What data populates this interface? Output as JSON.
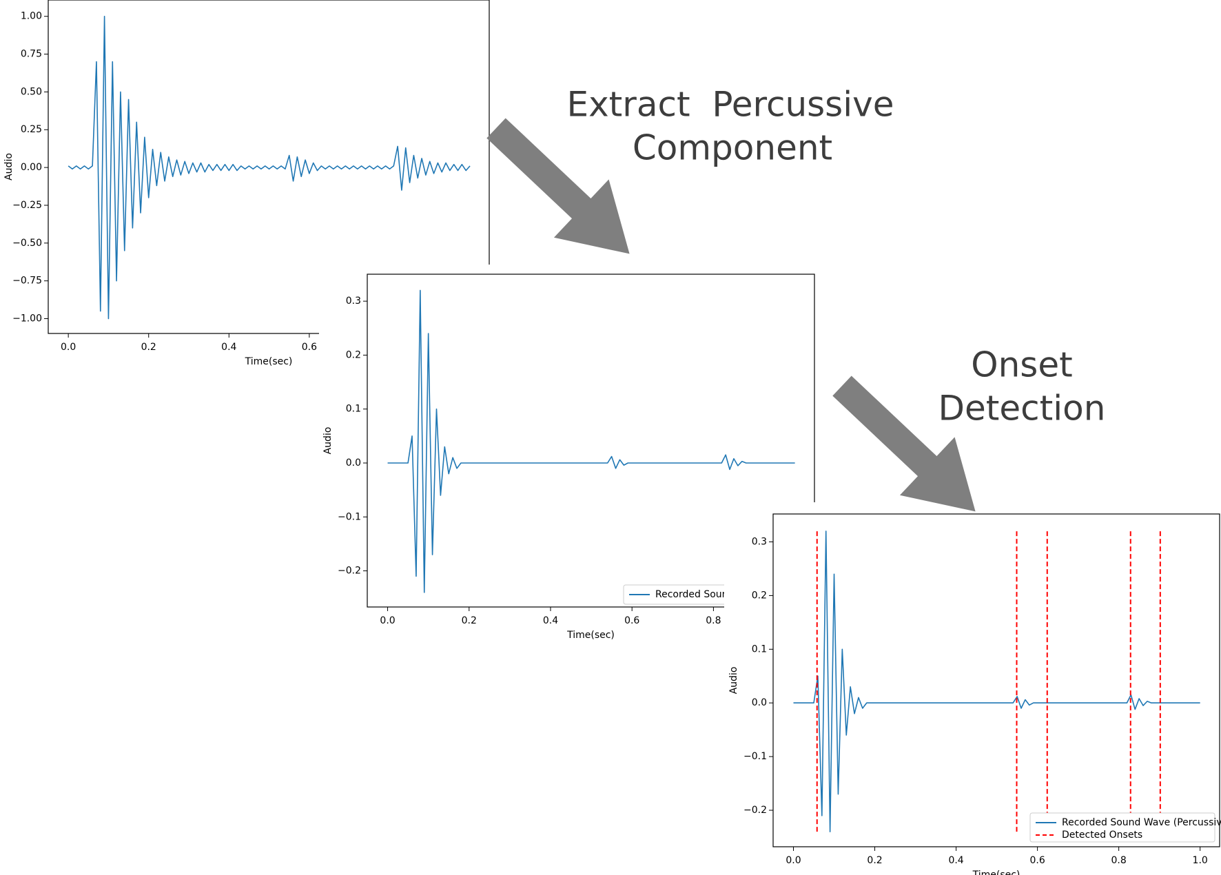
{
  "annotations": [
    "Extract  Percussive",
    "Component",
    "Onset",
    "Detection"
  ],
  "chart_data": [
    {
      "type": "line",
      "xlabel": "Time(sec)",
      "ylabel": "Audio",
      "xlim": [
        -0.05,
        1.048
      ],
      "ylim": [
        -1.098,
        1.108
      ],
      "xticks": [
        {
          "value": 0,
          "label": "0.0"
        },
        {
          "value": 0.2,
          "label": "0.2"
        },
        {
          "value": 0.4,
          "label": "0.4"
        },
        {
          "value": 0.6,
          "label": "0.6"
        }
      ],
      "yticks": [
        {
          "value": 1,
          "label": "1.00"
        },
        {
          "value": 0.75,
          "label": "0.75"
        },
        {
          "value": 0.5,
          "label": "0.50"
        },
        {
          "value": 0.25,
          "label": "0.25"
        },
        {
          "value": 0,
          "label": "0.00"
        },
        {
          "value": -0.25,
          "label": "−0.25"
        },
        {
          "value": -0.5,
          "label": "−0.50"
        },
        {
          "value": -0.75,
          "label": "−0.75"
        },
        {
          "value": -1,
          "label": "−1.00"
        }
      ],
      "x": [
        0,
        0.01,
        0.02,
        0.03,
        0.04,
        0.05,
        0.06,
        0.07,
        0.08,
        0.09,
        0.1,
        0.11,
        0.12,
        0.13,
        0.14,
        0.15,
        0.16,
        0.17,
        0.18,
        0.19,
        0.2,
        0.21,
        0.22,
        0.23,
        0.24,
        0.25,
        0.26,
        0.27,
        0.28,
        0.29,
        0.3,
        0.31,
        0.32,
        0.33,
        0.34,
        0.35,
        0.36,
        0.37,
        0.38,
        0.39,
        0.4,
        0.41,
        0.42,
        0.43,
        0.44,
        0.45,
        0.46,
        0.47,
        0.48,
        0.49,
        0.5,
        0.51,
        0.52,
        0.53,
        0.54,
        0.55,
        0.56,
        0.57,
        0.58,
        0.59,
        0.6,
        0.61,
        0.62,
        0.63,
        0.64,
        0.65,
        0.66,
        0.67,
        0.68,
        0.69,
        0.7,
        0.71,
        0.72,
        0.73,
        0.74,
        0.75,
        0.76,
        0.77,
        0.78,
        0.79,
        0.8,
        0.81,
        0.82,
        0.83,
        0.84,
        0.85,
        0.86,
        0.87,
        0.88,
        0.89,
        0.9,
        0.91,
        0.92,
        0.93,
        0.94,
        0.95,
        0.96,
        0.97,
        0.98,
        0.99,
        1
      ],
      "series": [
        {
          "color": "#1f77b4",
          "values": [
            0.01,
            -0.01,
            0.01,
            -0.01,
            0.01,
            -0.01,
            0.01,
            0.7,
            -0.95,
            1.0,
            -1.0,
            0.7,
            -0.75,
            0.5,
            -0.55,
            0.45,
            -0.4,
            0.3,
            -0.3,
            0.2,
            -0.2,
            0.12,
            -0.12,
            0.1,
            -0.09,
            0.07,
            -0.06,
            0.05,
            -0.05,
            0.04,
            -0.04,
            0.03,
            -0.03,
            0.03,
            -0.03,
            0.02,
            -0.02,
            0.02,
            -0.02,
            0.02,
            -0.02,
            0.02,
            -0.02,
            0.01,
            -0.01,
            0.01,
            -0.01,
            0.01,
            -0.01,
            0.01,
            -0.01,
            0.01,
            -0.01,
            0.01,
            -0.01,
            0.08,
            -0.09,
            0.07,
            -0.06,
            0.05,
            -0.04,
            0.03,
            -0.02,
            0.01,
            -0.01,
            0.01,
            -0.01,
            0.01,
            -0.01,
            0.01,
            -0.01,
            0.01,
            -0.01,
            0.01,
            -0.01,
            0.01,
            -0.01,
            0.01,
            -0.01,
            0.01,
            -0.01,
            0.01,
            0.14,
            -0.15,
            0.13,
            -0.1,
            0.08,
            -0.07,
            0.06,
            -0.05,
            0.04,
            -0.04,
            0.03,
            -0.03,
            0.03,
            -0.02,
            0.02,
            -0.02,
            0.02,
            -0.02,
            0.01
          ]
        }
      ]
    },
    {
      "type": "line",
      "xlabel": "Time(sec)",
      "ylabel": "Audio",
      "legend": "lower right",
      "xlim": [
        -0.05,
        1.048
      ],
      "ylim": [
        -0.267,
        0.35
      ],
      "xticks": [
        {
          "value": 0,
          "label": "0.0"
        },
        {
          "value": 0.2,
          "label": "0.2"
        },
        {
          "value": 0.4,
          "label": "0.4"
        },
        {
          "value": 0.6,
          "label": "0.6"
        },
        {
          "value": 0.8,
          "label": "0.8"
        }
      ],
      "yticks": [
        {
          "value": 0.3,
          "label": "0.3"
        },
        {
          "value": 0.2,
          "label": "0.2"
        },
        {
          "value": 0.1,
          "label": "0.1"
        },
        {
          "value": 0,
          "label": "0.0"
        },
        {
          "value": -0.1,
          "label": "−0.1"
        },
        {
          "value": -0.2,
          "label": "−0.2"
        }
      ],
      "x": [
        0,
        0.01,
        0.02,
        0.03,
        0.04,
        0.05,
        0.06,
        0.07,
        0.08,
        0.09,
        0.1,
        0.11,
        0.12,
        0.13,
        0.14,
        0.15,
        0.16,
        0.17,
        0.18,
        0.19,
        0.2,
        0.21,
        0.22,
        0.23,
        0.24,
        0.25,
        0.26,
        0.27,
        0.28,
        0.29,
        0.3,
        0.31,
        0.32,
        0.33,
        0.34,
        0.35,
        0.36,
        0.37,
        0.38,
        0.39,
        0.4,
        0.41,
        0.42,
        0.43,
        0.44,
        0.45,
        0.46,
        0.47,
        0.48,
        0.49,
        0.5,
        0.51,
        0.52,
        0.53,
        0.54,
        0.55,
        0.56,
        0.57,
        0.58,
        0.59,
        0.6,
        0.61,
        0.62,
        0.63,
        0.64,
        0.65,
        0.66,
        0.67,
        0.68,
        0.69,
        0.7,
        0.71,
        0.72,
        0.73,
        0.74,
        0.75,
        0.76,
        0.77,
        0.78,
        0.79,
        0.8,
        0.81,
        0.82,
        0.83,
        0.84,
        0.85,
        0.86,
        0.87,
        0.88,
        0.89,
        0.9,
        0.91,
        0.92,
        0.93,
        0.94,
        0.95,
        0.96,
        0.97,
        0.98,
        0.99,
        1
      ],
      "series": [
        {
          "name": "Recorded Sound",
          "color": "#1f77b4",
          "values": [
            0,
            0,
            0,
            0,
            0,
            0,
            0.05,
            -0.21,
            0.32,
            -0.24,
            0.24,
            -0.17,
            0.1,
            -0.06,
            0.03,
            -0.02,
            0.01,
            -0.01,
            0,
            0,
            0,
            0,
            0,
            0,
            0,
            0,
            0,
            0,
            0,
            0,
            0,
            0,
            0,
            0,
            0,
            0,
            0,
            0,
            0,
            0,
            0,
            0,
            0,
            0,
            0,
            0,
            0,
            0,
            0,
            0,
            0,
            0,
            0,
            0,
            0,
            0.012,
            -0.01,
            0.006,
            -0.004,
            0,
            0,
            0,
            0,
            0,
            0,
            0,
            0,
            0,
            0,
            0,
            0,
            0,
            0,
            0,
            0,
            0,
            0,
            0,
            0,
            0,
            0,
            0,
            0,
            0.015,
            -0.012,
            0.008,
            -0.005,
            0.003,
            0,
            0,
            0,
            0,
            0,
            0,
            0,
            0,
            0,
            0,
            0,
            0,
            0
          ]
        }
      ]
    },
    {
      "type": "line",
      "xlabel": "Time(sec)",
      "ylabel": "Audio",
      "legend": "lower right",
      "xlim": [
        -0.05,
        1.048
      ],
      "ylim": [
        -0.268,
        0.352
      ],
      "xticks": [
        {
          "value": 0,
          "label": "0.0"
        },
        {
          "value": 0.2,
          "label": "0.2"
        },
        {
          "value": 0.4,
          "label": "0.4"
        },
        {
          "value": 0.6,
          "label": "0.6"
        },
        {
          "value": 0.8,
          "label": "0.8"
        },
        {
          "value": 1,
          "label": "1.0"
        }
      ],
      "yticks": [
        {
          "value": 0.3,
          "label": "0.3"
        },
        {
          "value": 0.2,
          "label": "0.2"
        },
        {
          "value": 0.1,
          "label": "0.1"
        },
        {
          "value": 0,
          "label": "0.0"
        },
        {
          "value": -0.1,
          "label": "−0.1"
        },
        {
          "value": -0.2,
          "label": "−0.2"
        }
      ],
      "x": [
        0,
        0.01,
        0.02,
        0.03,
        0.04,
        0.05,
        0.06,
        0.07,
        0.08,
        0.09,
        0.1,
        0.11,
        0.12,
        0.13,
        0.14,
        0.15,
        0.16,
        0.17,
        0.18,
        0.19,
        0.2,
        0.21,
        0.22,
        0.23,
        0.24,
        0.25,
        0.26,
        0.27,
        0.28,
        0.29,
        0.3,
        0.31,
        0.32,
        0.33,
        0.34,
        0.35,
        0.36,
        0.37,
        0.38,
        0.39,
        0.4,
        0.41,
        0.42,
        0.43,
        0.44,
        0.45,
        0.46,
        0.47,
        0.48,
        0.49,
        0.5,
        0.51,
        0.52,
        0.53,
        0.54,
        0.55,
        0.56,
        0.57,
        0.58,
        0.59,
        0.6,
        0.61,
        0.62,
        0.63,
        0.64,
        0.65,
        0.66,
        0.67,
        0.68,
        0.69,
        0.7,
        0.71,
        0.72,
        0.73,
        0.74,
        0.75,
        0.76,
        0.77,
        0.78,
        0.79,
        0.8,
        0.81,
        0.82,
        0.83,
        0.84,
        0.85,
        0.86,
        0.87,
        0.88,
        0.89,
        0.9,
        0.91,
        0.92,
        0.93,
        0.94,
        0.95,
        0.96,
        0.97,
        0.98,
        0.99,
        1
      ],
      "series": [
        {
          "name": "Recorded Sound Wave (Percussive)",
          "color": "#1f77b4",
          "values": [
            0,
            0,
            0,
            0,
            0,
            0,
            0.05,
            -0.21,
            0.32,
            -0.24,
            0.24,
            -0.17,
            0.1,
            -0.06,
            0.03,
            -0.02,
            0.01,
            -0.01,
            0,
            0,
            0,
            0,
            0,
            0,
            0,
            0,
            0,
            0,
            0,
            0,
            0,
            0,
            0,
            0,
            0,
            0,
            0,
            0,
            0,
            0,
            0,
            0,
            0,
            0,
            0,
            0,
            0,
            0,
            0,
            0,
            0,
            0,
            0,
            0,
            0,
            0.012,
            -0.01,
            0.006,
            -0.004,
            0,
            0,
            0,
            0,
            0,
            0,
            0,
            0,
            0,
            0,
            0,
            0,
            0,
            0,
            0,
            0,
            0,
            0,
            0,
            0,
            0,
            0,
            0,
            0,
            0.015,
            -0.012,
            0.008,
            -0.005,
            0.003,
            0,
            0,
            0,
            0,
            0,
            0,
            0,
            0,
            0,
            0,
            0,
            0,
            0
          ]
        }
      ],
      "onsets": {
        "name": "Detected Onsets",
        "color": "#ff0000",
        "x": [
          0.058,
          0.549,
          0.624,
          0.829,
          0.902
        ],
        "ymin": -0.24,
        "ymax": 0.32
      }
    }
  ]
}
